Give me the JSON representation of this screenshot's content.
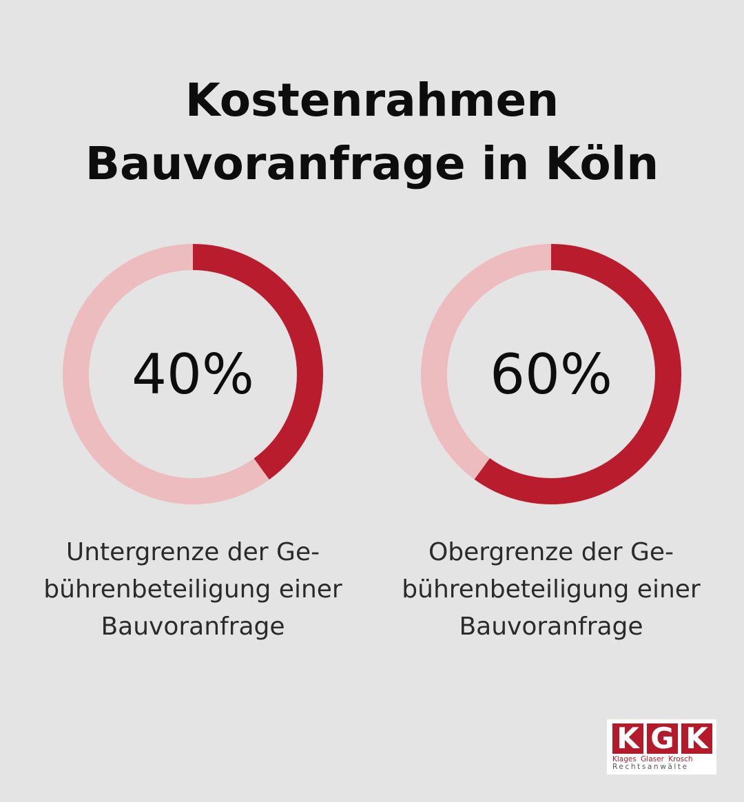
{
  "title": {
    "line1": "Kostenrahmen",
    "line2": "Bauvoranfrage in Köln"
  },
  "colors": {
    "background": "#e4e4e4",
    "accent": "#b91c2c",
    "track": "#ecbcbf",
    "text": "#0d0d0d"
  },
  "chart_data": [
    {
      "type": "pie",
      "variant": "donut",
      "value_percent": 40,
      "label": "40%",
      "caption": [
        "Untergrenze der Ge-",
        "bührenbeteiligung einer",
        "Bauvoranfrage"
      ]
    },
    {
      "type": "pie",
      "variant": "donut",
      "value_percent": 60,
      "label": "60%",
      "caption": [
        "Obergrenze der Ge-",
        "bührenbeteiligung einer",
        "Bauvoranfrage"
      ]
    }
  ],
  "logo": {
    "letters": [
      "K",
      "G",
      "K"
    ],
    "names": "Klages Glaser Krosch",
    "subtitle": "Rechtsanwälte"
  }
}
